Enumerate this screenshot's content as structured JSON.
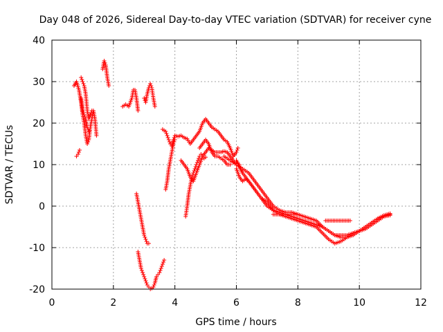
{
  "chart_data": {
    "type": "scatter",
    "title": "Day 048 of 2026, Sidereal Day-to-day VTEC variation (SDTVAR) for receiver cyne",
    "xlabel": "GPS time / hours",
    "ylabel": "SDTVAR / TECUs",
    "xlim": [
      0,
      12
    ],
    "ylim": [
      -20,
      40
    ],
    "x_ticks": [
      0,
      2,
      4,
      6,
      8,
      10,
      12
    ],
    "y_ticks": [
      -20,
      -10,
      0,
      10,
      20,
      30,
      40
    ],
    "grid": true,
    "marker": "+",
    "colors": {
      "series": "#ff0000",
      "grid": "#a0a0a0",
      "axis": "#000000"
    },
    "segments": [
      {
        "name": "seg-a",
        "x": [
          0.72,
          0.8,
          0.88,
          0.95,
          1.0,
          1.05,
          1.1,
          1.15,
          1.2,
          1.25,
          1.3,
          1.35,
          1.4,
          1.45
        ],
        "y": [
          29,
          30,
          28,
          25,
          22,
          20,
          17,
          15,
          16,
          19,
          21,
          23,
          21,
          17
        ]
      },
      {
        "name": "seg-b",
        "x": [
          0.8,
          0.85,
          0.9
        ],
        "y": [
          12,
          12.5,
          13.5
        ]
      },
      {
        "name": "seg-c",
        "x": [
          0.95,
          1.0,
          1.05,
          1.1,
          1.15,
          1.2,
          1.25,
          1.3
        ],
        "y": [
          31,
          30,
          29,
          27,
          23,
          21,
          22,
          23
        ]
      },
      {
        "name": "seg-d",
        "x": [
          0.95,
          1.0,
          1.05,
          1.1,
          1.15,
          1.2
        ],
        "y": [
          26,
          23,
          22,
          21,
          19,
          18
        ]
      },
      {
        "name": "seg-e",
        "x": [
          1.65,
          1.7,
          1.75,
          1.8,
          1.85
        ],
        "y": [
          33,
          35,
          34,
          31,
          29
        ]
      },
      {
        "name": "seg-f",
        "x": [
          2.3,
          2.4,
          2.5,
          2.6,
          2.65,
          2.7,
          2.75,
          2.8
        ],
        "y": [
          24,
          24.5,
          24,
          26,
          28,
          28,
          26,
          23
        ]
      },
      {
        "name": "seg-g",
        "x": [
          3.0,
          3.05,
          3.1,
          3.15,
          3.2,
          3.25,
          3.3,
          3.35
        ],
        "y": [
          26,
          25,
          27,
          28.5,
          29.5,
          28.5,
          26,
          24
        ]
      },
      {
        "name": "seg-h",
        "x": [
          2.75,
          2.8,
          2.85,
          2.9,
          2.95,
          3.0,
          3.05,
          3.1,
          3.15
        ],
        "y": [
          3,
          1,
          -1,
          -3,
          -5,
          -7,
          -8,
          -9,
          -9
        ]
      },
      {
        "name": "seg-i",
        "x": [
          2.8,
          2.85,
          2.9,
          2.95,
          3.0,
          3.05,
          3.1,
          3.15,
          3.2,
          3.25,
          3.3,
          3.35,
          3.4,
          3.45,
          3.5,
          3.55,
          3.6,
          3.65
        ],
        "y": [
          -11,
          -13,
          -15,
          -16,
          -17,
          -18,
          -19,
          -19.5,
          -20,
          -19.8,
          -19.5,
          -18.5,
          -17,
          -16.5,
          -16,
          -15,
          -14,
          -13
        ]
      },
      {
        "name": "seg-j",
        "x": [
          3.6,
          3.65,
          3.7,
          3.75,
          3.8,
          3.85,
          3.9,
          3.95,
          4.0,
          4.1,
          4.2,
          4.3,
          4.4,
          4.5,
          4.6,
          4.7,
          4.8,
          4.9,
          5.0,
          5.1,
          5.2,
          5.3,
          5.4,
          5.5,
          5.6,
          5.7,
          5.8,
          5.9,
          6.0,
          6.05
        ],
        "y": [
          18.5,
          18.2,
          18.0,
          17.0,
          16.0,
          15.0,
          14.5,
          16.0,
          17.0,
          16.8,
          17.0,
          16.5,
          16.2,
          15.0,
          16.0,
          17.0,
          18.0,
          20.0,
          21.0,
          20.0,
          19.0,
          18.5,
          18.0,
          17.0,
          16.0,
          15.5,
          14.0,
          12.0,
          13.0,
          14.0
        ]
      },
      {
        "name": "seg-k",
        "x": [
          3.7,
          3.75,
          3.8,
          3.85,
          3.9,
          3.95,
          4.0
        ],
        "y": [
          4,
          6,
          9,
          11,
          13,
          15,
          16
        ]
      },
      {
        "name": "seg-l",
        "x": [
          4.2,
          4.3,
          4.4,
          4.5,
          4.6,
          4.7,
          4.8,
          4.9,
          5.0,
          5.1,
          5.2,
          5.3,
          5.4,
          5.5,
          5.6,
          5.7,
          5.8,
          5.9,
          6.0,
          6.1
        ],
        "y": [
          11,
          10,
          9,
          7,
          6,
          8,
          10,
          12,
          13,
          14,
          13.5,
          13,
          13,
          13,
          13.2,
          13,
          12,
          11,
          10,
          10
        ]
      },
      {
        "name": "seg-m",
        "x": [
          4.35,
          4.4,
          4.45,
          4.5,
          4.55,
          4.6,
          4.65,
          4.7,
          4.75,
          4.8,
          4.85,
          4.9,
          4.95,
          5.0
        ],
        "y": [
          -2.5,
          0,
          3,
          5,
          7,
          8,
          9,
          10,
          11,
          12,
          12.5,
          12,
          11.5,
          11.8
        ]
      },
      {
        "name": "seg-n",
        "x": [
          4.8,
          4.9,
          5.0,
          5.1,
          5.2,
          5.3,
          5.4,
          5.5,
          5.6,
          5.7,
          5.8
        ],
        "y": [
          14,
          15,
          16,
          15,
          13,
          12,
          12,
          11.5,
          11,
          10,
          10
        ]
      },
      {
        "name": "seg-o",
        "x": [
          5.6,
          5.8,
          6.0,
          6.2,
          6.4,
          6.6,
          6.8,
          7.0,
          7.2,
          7.4,
          7.6,
          7.8,
          8.0,
          8.2,
          8.4,
          8.6,
          8.8,
          9.0,
          9.2,
          9.4,
          9.6,
          9.8,
          10.0,
          10.2,
          10.4,
          10.6,
          10.8,
          11.0
        ],
        "y": [
          12,
          11,
          10,
          9,
          8,
          6,
          4,
          2,
          0,
          -1,
          -1.5,
          -1.5,
          -2,
          -2.5,
          -3,
          -3.5,
          -5,
          -6,
          -7,
          -7.5,
          -7.5,
          -7,
          -6,
          -5.5,
          -4.5,
          -3.5,
          -2.5,
          -2
        ]
      },
      {
        "name": "seg-p",
        "x": [
          6.0,
          6.2,
          6.4,
          6.6,
          6.8,
          7.0,
          7.2,
          7.4,
          7.6,
          7.8,
          8.0,
          8.2,
          8.4,
          8.6,
          8.8,
          9.0,
          9.2,
          9.4,
          9.6,
          9.8,
          10.0,
          10.2,
          10.4,
          10.6,
          10.8,
          11.0
        ],
        "y": [
          11,
          8,
          6,
          4,
          2,
          1,
          -1,
          -2,
          -2.5,
          -3,
          -3.5,
          -4,
          -4.5,
          -5,
          -6.5,
          -8,
          -9,
          -8.5,
          -7.5,
          -6.5,
          -6,
          -5,
          -4,
          -3,
          -2.2,
          -1.8
        ]
      },
      {
        "name": "seg-q",
        "x": [
          6.0,
          6.1,
          6.2,
          6.3,
          6.4,
          6.6,
          6.8,
          7.0,
          7.2,
          7.4,
          7.6,
          7.8,
          8.0,
          8.2,
          8.4,
          8.6,
          8.8,
          9.0,
          9.2,
          9.4,
          9.6,
          9.8,
          10.0,
          10.2,
          10.4,
          10.6,
          10.8,
          11.0
        ],
        "y": [
          9,
          7,
          6,
          6.5,
          6,
          4,
          2,
          0,
          -1,
          -1.5,
          -2,
          -2.5,
          -3,
          -3.5,
          -4,
          -4.5,
          -5,
          -6,
          -7,
          -7,
          -7,
          -6.5,
          -6,
          -5,
          -4,
          -3,
          -2.5,
          -2.2
        ]
      },
      {
        "name": "seg-r",
        "x": [
          7.2,
          7.3,
          7.4,
          7.5,
          7.6,
          7.7,
          7.8,
          7.9,
          8.0
        ],
        "y": [
          -2,
          -2,
          -2,
          -2,
          -2,
          -2,
          -2,
          -2,
          -2
        ]
      },
      {
        "name": "seg-s",
        "x": [
          8.9,
          9.0,
          9.1,
          9.2,
          9.3,
          9.4,
          9.5,
          9.6,
          9.7
        ],
        "y": [
          -3.5,
          -3.5,
          -3.5,
          -3.5,
          -3.5,
          -3.5,
          -3.5,
          -3.5,
          -3.5
        ]
      }
    ]
  }
}
